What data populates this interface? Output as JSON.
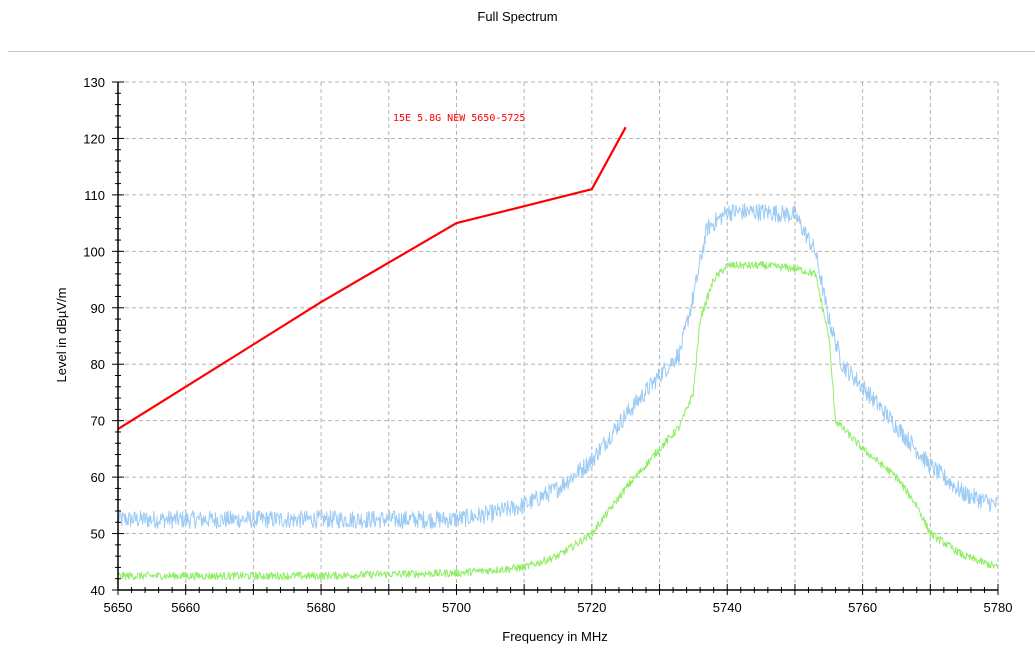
{
  "chart_data": {
    "type": "line",
    "title": "Full Spectrum",
    "xlabel": "Frequency in MHz",
    "ylabel": "Level in dBµV/m",
    "xlim": [
      5650,
      5780
    ],
    "ylim": [
      40,
      130
    ],
    "x_ticks": [
      5650,
      5660,
      5680,
      5700,
      5720,
      5740,
      5760,
      5780
    ],
    "y_ticks": [
      40,
      50,
      60,
      70,
      80,
      90,
      100,
      110,
      120,
      130
    ],
    "grid": true,
    "annotation": {
      "text": "15E 5.8G NEW 5650-5725",
      "color": "#ff0000"
    },
    "series": [
      {
        "color": "#ff0000",
        "x": [
          5650,
          5660,
          5670,
          5680,
          5690,
          5700,
          5710,
          5720,
          5725
        ],
        "y": [
          68.5,
          76,
          83.5,
          91,
          98,
          105,
          108,
          111,
          122
        ]
      },
      {
        "color": "#9ccbf5",
        "x": [
          5650,
          5660,
          5670,
          5680,
          5690,
          5700,
          5705,
          5710,
          5715,
          5720,
          5725,
          5730,
          5733,
          5735,
          5737,
          5740,
          5745,
          5750,
          5753,
          5755,
          5757,
          5760,
          5765,
          5770,
          5775,
          5780
        ],
        "y": [
          52.5,
          52.5,
          52.5,
          52.5,
          52.5,
          52.5,
          53.5,
          55,
          58,
          63,
          71,
          78,
          82,
          92,
          104,
          107,
          107,
          106.5,
          100,
          88,
          80,
          76,
          69,
          62,
          57,
          55
        ]
      },
      {
        "color": "#90ee67",
        "x": [
          5650,
          5660,
          5670,
          5680,
          5690,
          5700,
          5710,
          5715,
          5720,
          5725,
          5730,
          5733,
          5735,
          5736,
          5738,
          5740,
          5745,
          5750,
          5753,
          5755,
          5756,
          5760,
          5765,
          5768,
          5770,
          5775,
          5780
        ],
        "y": [
          42.5,
          42.5,
          42.5,
          42.5,
          42.8,
          43,
          44,
          46,
          50,
          58,
          65,
          69,
          75,
          88,
          95,
          97.5,
          97.5,
          97,
          96,
          85,
          70,
          65,
          60,
          55,
          50,
          46,
          44
        ]
      }
    ]
  }
}
